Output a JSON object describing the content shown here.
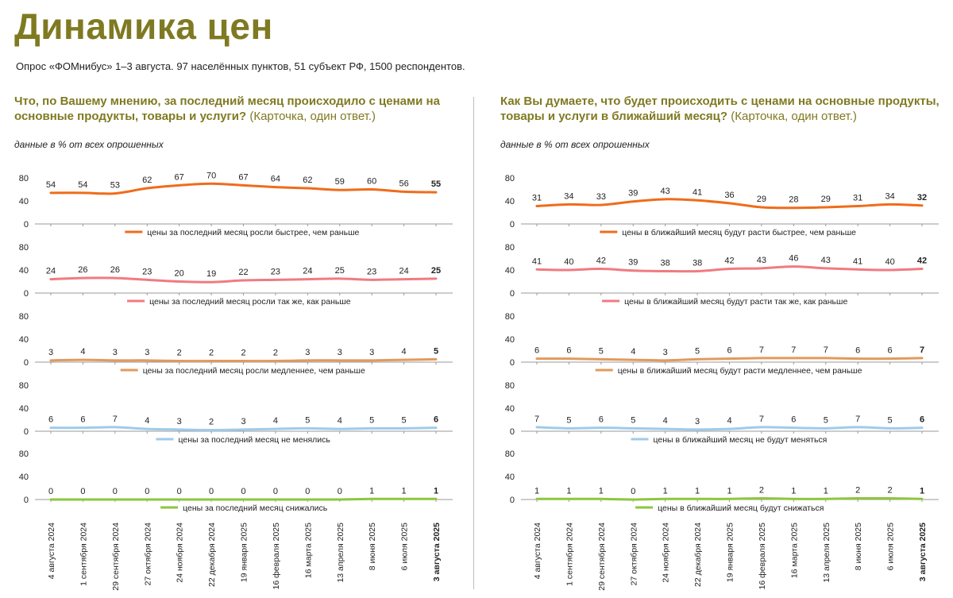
{
  "header": {
    "title": "Динамика цен",
    "subtitle": "Опрос «ФОМнибус» 1–3 августа. 97 населённых пунктов, 51 субъект РФ, 1500 респондентов."
  },
  "data_note": "данные в % от всех опрошенных",
  "panels": [
    {
      "question": "Что, по Вашему мнению, за последний месяц происходило с ценами на основные продукты, товары и услуги?",
      "note": "(Карточка, один ответ.)"
    },
    {
      "question": "Как Вы думаете, что будет происходить с ценами на основные продукты, товары и услуги в ближайший месяц?",
      "note": "(Карточка, один ответ.)"
    }
  ],
  "chart_data": [
    {
      "type": "line",
      "categories": [
        "4 августа 2024",
        "1 сентября 2024",
        "29 сентября 2024",
        "27 октября 2024",
        "24 ноября 2024",
        "22 декабря 2024",
        "19 января 2025",
        "16 февраля 2025",
        "16 марта 2025",
        "13 апреля 2025",
        "8 июня 2025",
        "6 июля 2025",
        "3 августа 2025"
      ],
      "ylim": [
        0,
        80
      ],
      "yticks": [
        0,
        40,
        80
      ],
      "series": [
        {
          "name": "цены за последний месяц росли быстрее, чем раньше",
          "color": "#ef6c1a",
          "values": [
            54,
            54,
            53,
            62,
            67,
            70,
            67,
            64,
            62,
            59,
            60,
            56,
            55
          ]
        },
        {
          "name": "цены за последний месяц росли так же, как раньше",
          "color": "#f07b80",
          "values": [
            24,
            26,
            26,
            23,
            20,
            19,
            22,
            23,
            24,
            25,
            23,
            24,
            25
          ]
        },
        {
          "name": "цены за последний месяц росли медленнее, чем раньше",
          "color": "#e29a5c",
          "values": [
            3,
            4,
            3,
            3,
            2,
            2,
            2,
            2,
            3,
            3,
            3,
            4,
            5
          ]
        },
        {
          "name": "цены за последний месяц не менялись",
          "color": "#9fcbea",
          "values": [
            6,
            6,
            7,
            4,
            3,
            2,
            3,
            4,
            5,
            4,
            5,
            5,
            6
          ]
        },
        {
          "name": "цены за последний месяц снижались",
          "color": "#8dc63f",
          "values": [
            0,
            0,
            0,
            0,
            0,
            0,
            0,
            0,
            0,
            0,
            1,
            1,
            1
          ]
        }
      ]
    },
    {
      "type": "line",
      "categories": [
        "4 августа 2024",
        "1 сентября 2024",
        "29 сентября 2024",
        "27 октября 2024",
        "24 ноября 2024",
        "22 декабря 2024",
        "19 января 2025",
        "16 февраля 2025",
        "16 марта 2025",
        "13 апреля 2025",
        "8 июня 2025",
        "6 июля 2025",
        "3 августа 2025"
      ],
      "ylim": [
        0,
        80
      ],
      "yticks": [
        0,
        40,
        80
      ],
      "series": [
        {
          "name": "цены в ближайший месяц будут расти быстрее, чем раньше",
          "color": "#ef6c1a",
          "values": [
            31,
            34,
            33,
            39,
            43,
            41,
            36,
            29,
            28,
            29,
            31,
            34,
            32
          ]
        },
        {
          "name": "цены в ближайший месяц будут расти так же, как раньше",
          "color": "#f07b80",
          "values": [
            41,
            40,
            42,
            39,
            38,
            38,
            42,
            43,
            46,
            43,
            41,
            40,
            42
          ]
        },
        {
          "name": "цены в ближайший месяц будут расти медленнее, чем раньше",
          "color": "#e29a5c",
          "values": [
            6,
            6,
            5,
            4,
            3,
            5,
            6,
            7,
            7,
            7,
            6,
            6,
            7
          ]
        },
        {
          "name": "цены в ближайший месяц не будут меняться",
          "color": "#9fcbea",
          "values": [
            7,
            5,
            6,
            5,
            4,
            3,
            4,
            7,
            6,
            5,
            7,
            5,
            6
          ]
        },
        {
          "name": "цены в ближайший месяц будут снижаться",
          "color": "#8dc63f",
          "values": [
            1,
            1,
            1,
            0,
            1,
            1,
            1,
            2,
            1,
            1,
            2,
            2,
            1
          ]
        }
      ]
    }
  ]
}
